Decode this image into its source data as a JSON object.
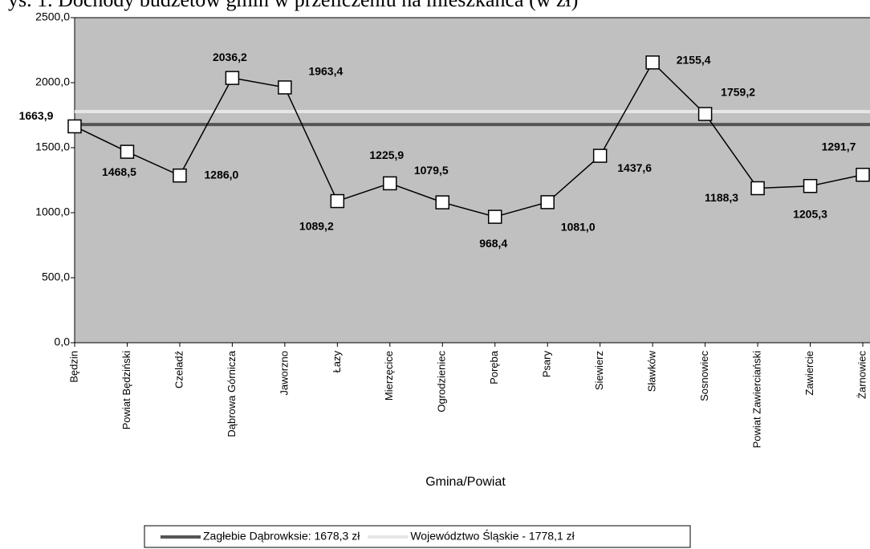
{
  "chart_data": {
    "type": "line",
    "title": "ys. 1. Dochody budżetów gmin w przeliczeniu na mieszkańca (w zł)",
    "x_label": "Gmina/Powiat",
    "categories": [
      "Będzin",
      "Powiat Będziński",
      "Czeladź",
      "Dąbrowa Górnicza",
      "Jaworzno",
      "Łazy",
      "Mierzęcice",
      "Ogrodzieniec",
      "Poręba",
      "Psary",
      "Siewierz",
      "Sławków",
      "Sosnowiec",
      "Powiat Zawierciański",
      "Zawiercie",
      "Żarnowiec"
    ],
    "series": [
      {
        "name": null,
        "color": "#000000",
        "values": [
          1663.9,
          1468.5,
          1286.0,
          2036.2,
          1963.4,
          1089.2,
          1225.9,
          1079.5,
          968.4,
          1081.0,
          1437.6,
          2155.4,
          1759.2,
          1188.3,
          1205.3,
          1291.7
        ],
        "value_labels": [
          "1663,9",
          "1468,5",
          "1286,0",
          "2036,2",
          "1963,4",
          "1089,2",
          "1225,9",
          "1079,5",
          "968,4",
          "1081,0",
          "1437,6",
          "2155,4",
          "1759,2",
          "1188,3",
          "1205,3",
          "1291,7"
        ]
      }
    ],
    "reference_lines": [
      {
        "name": "Zagłebie Dąbrowksie: 1678,3 zł",
        "value": 1678.3,
        "color": "#555555"
      },
      {
        "name": "Województwo Śląskie - 1778,1 zł",
        "value": 1778.1,
        "color": "#e6e6e6"
      }
    ],
    "ylim": [
      0,
      2500
    ],
    "yticks": [
      {
        "value": 0,
        "label": "0,0"
      },
      {
        "value": 500,
        "label": "500,0"
      },
      {
        "value": 1000,
        "label": "1000,0"
      },
      {
        "value": 1500,
        "label": "1500,0"
      },
      {
        "value": 2000,
        "label": "2000,0"
      },
      {
        "value": 2500,
        "label": "2500,0"
      }
    ],
    "background": "#c0c0c0",
    "legend": "bottom"
  }
}
